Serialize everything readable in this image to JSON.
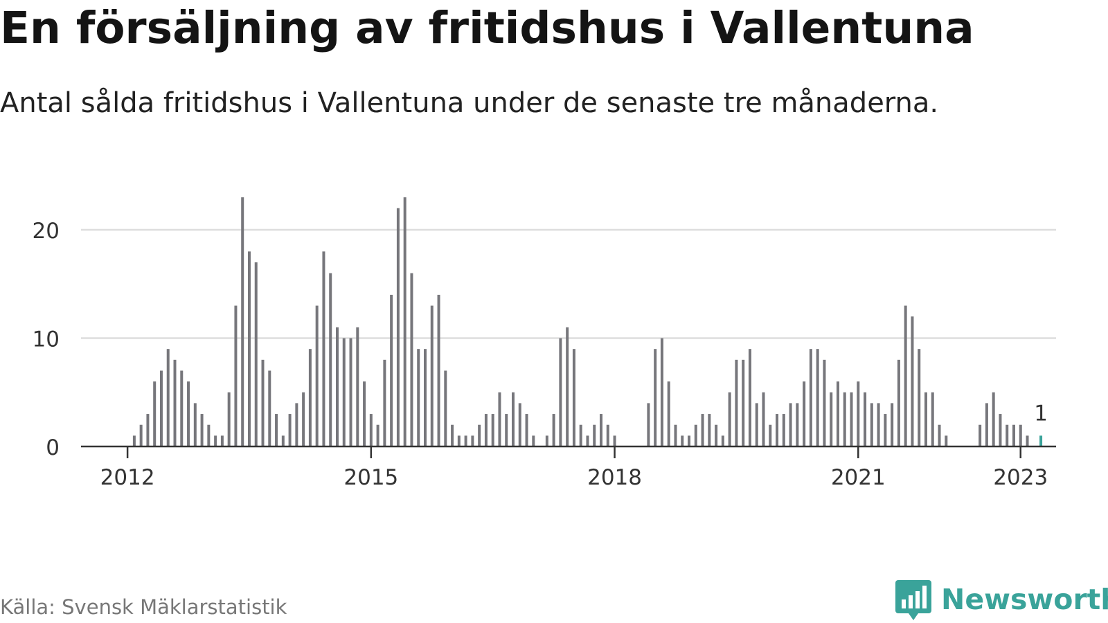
{
  "header": {
    "title": "En försäljning av fritidshus i Vallentuna",
    "subtitle": "Antal sålda fritidshus i Vallentuna under de senaste tre månaderna."
  },
  "footer": {
    "source": "Källa: Svensk Mäklarstatistik",
    "brand": "Newsworthy",
    "brand_icon": "bar-chart-speech-bubble-icon"
  },
  "colors": {
    "bar": "#76767b",
    "highlight": "#3aa39a",
    "grid": "#dddddd",
    "axis": "#333333",
    "brand": "#3aa39a"
  },
  "chart_data": {
    "type": "bar",
    "title": "En försäljning av fritidshus i Vallentuna",
    "subtitle": "Antal sålda fritidshus i Vallentuna under de senaste tre månaderna.",
    "xlabel": "",
    "ylabel": "",
    "x_start": "2011-07",
    "x_end": "2023-01",
    "ylim": [
      0,
      24
    ],
    "yticks": [
      0,
      10,
      20
    ],
    "xticks": [
      "2012",
      "2015",
      "2018",
      "2021",
      "2023"
    ],
    "grid": true,
    "legend": "none",
    "highlight_label": "1",
    "values": [
      0,
      0,
      0,
      0,
      0,
      0,
      0,
      1,
      2,
      3,
      6,
      7,
      9,
      8,
      7,
      6,
      4,
      3,
      2,
      1,
      1,
      5,
      13,
      23,
      18,
      17,
      8,
      7,
      3,
      1,
      3,
      4,
      5,
      9,
      13,
      18,
      16,
      11,
      10,
      10,
      11,
      6,
      3,
      2,
      8,
      14,
      22,
      23,
      16,
      9,
      9,
      13,
      14,
      7,
      2,
      1,
      1,
      1,
      2,
      3,
      3,
      5,
      3,
      5,
      4,
      3,
      1,
      0,
      1,
      3,
      10,
      11,
      9,
      2,
      1,
      2,
      3,
      2,
      1,
      0,
      0,
      0,
      0,
      4,
      9,
      10,
      6,
      2,
      1,
      1,
      2,
      3,
      3,
      2,
      1,
      5,
      8,
      8,
      9,
      4,
      5,
      2,
      3,
      3,
      4,
      4,
      6,
      9,
      9,
      8,
      5,
      6,
      5,
      5,
      6,
      5,
      4,
      4,
      3,
      4,
      8,
      13,
      12,
      9,
      5,
      5,
      2,
      1,
      0,
      0,
      0,
      0,
      2,
      4,
      5,
      3,
      2,
      2,
      2,
      1,
      0,
      1
    ]
  }
}
